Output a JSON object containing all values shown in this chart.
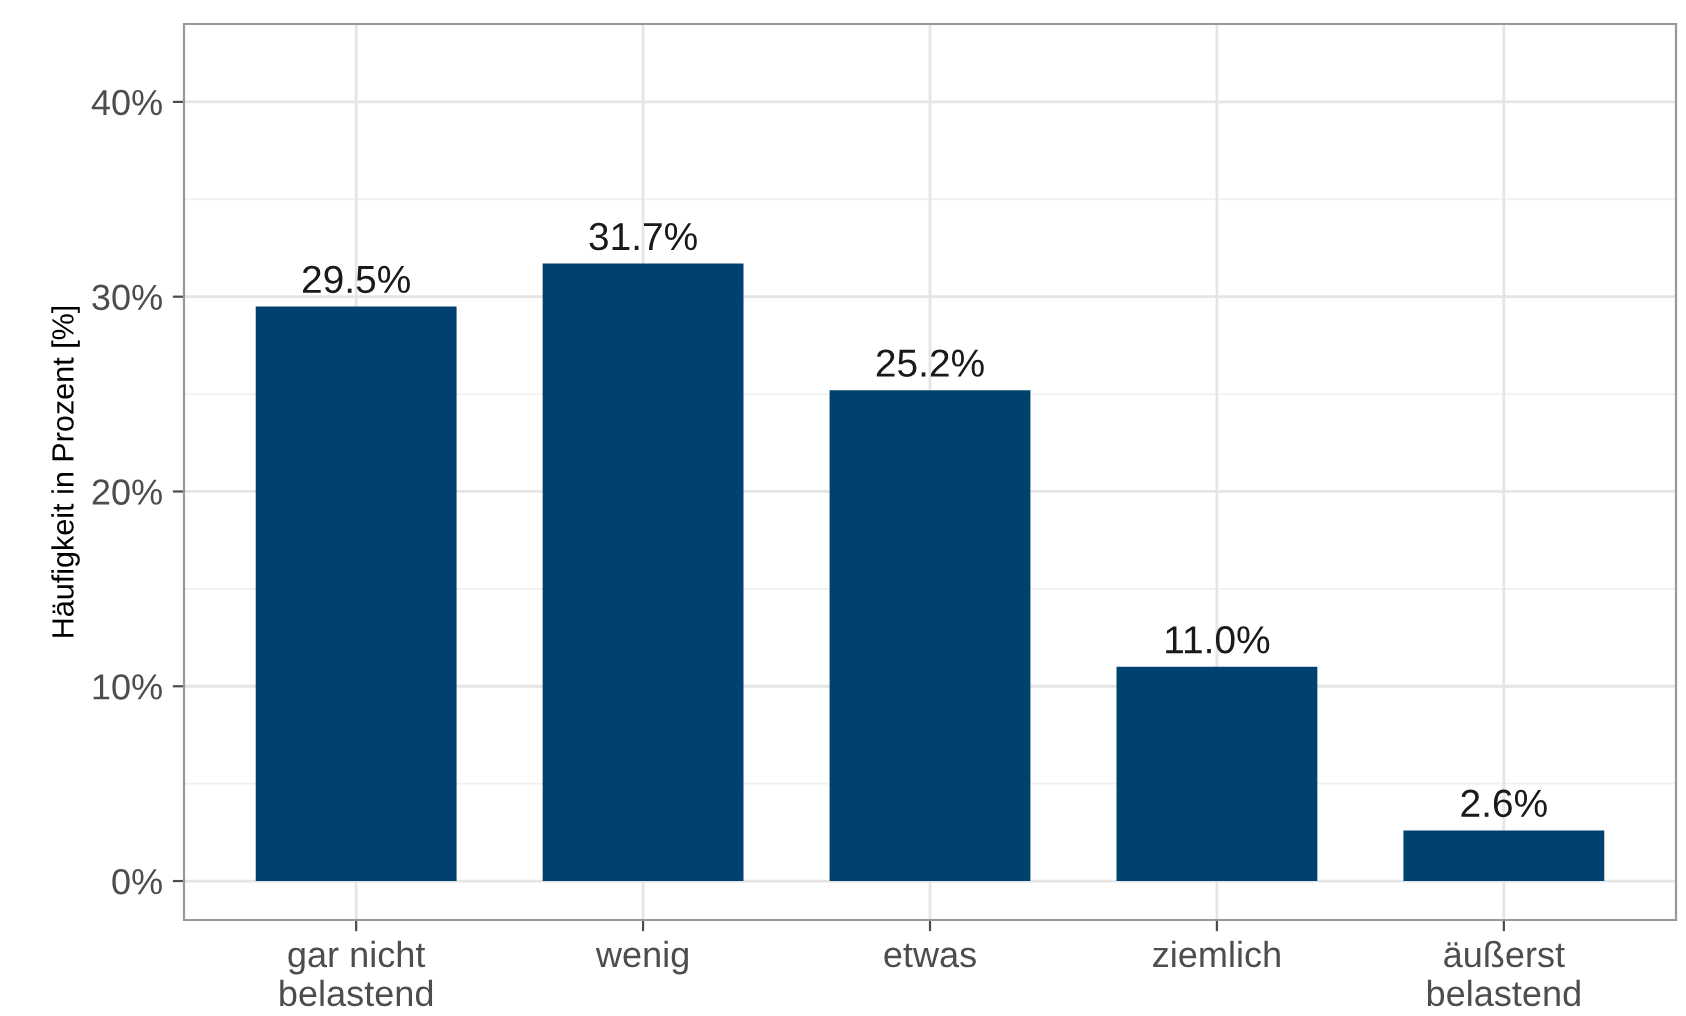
{
  "chart_data": {
    "type": "bar",
    "ylabel": "Häufigkeit in Prozent [%]",
    "categories": [
      "gar nicht\nbelastend",
      "wenig",
      "etwas",
      "ziemlich",
      "äußerst\nbelastend"
    ],
    "values": [
      29.5,
      31.7,
      25.2,
      11.0,
      2.6
    ],
    "value_labels": [
      "29.5%",
      "31.7%",
      "25.2%",
      "11.0%",
      "2.6%"
    ],
    "color": "#00426f",
    "ylim": [
      -2,
      44
    ],
    "yticks": [
      {
        "value": 0,
        "label": "0%"
      },
      {
        "value": 10,
        "label": "10%"
      },
      {
        "value": 20,
        "label": "20%"
      },
      {
        "value": 30,
        "label": "30%"
      },
      {
        "value": 40,
        "label": "40%"
      }
    ],
    "grid": true
  }
}
